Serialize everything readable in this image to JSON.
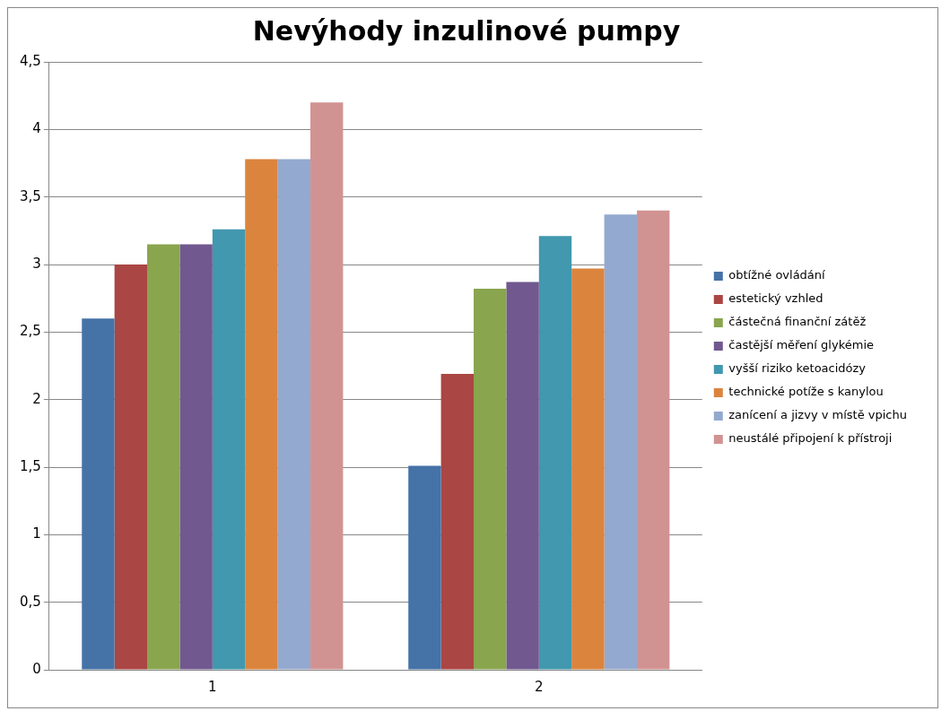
{
  "chart_data": {
    "type": "bar",
    "title": "Nevýhody inzulinové pumpy",
    "categories": [
      "1",
      "2"
    ],
    "series": [
      {
        "name": "obtížné ovládání",
        "color": "#4572a7",
        "values": [
          2.6,
          1.51
        ]
      },
      {
        "name": "estetický vzhled",
        "color": "#aa4643",
        "values": [
          3.0,
          2.19
        ]
      },
      {
        "name": "částečná finanční zátěž",
        "color": "#89a54e",
        "values": [
          3.15,
          2.82
        ]
      },
      {
        "name": "častější měření glykémie",
        "color": "#71588f",
        "values": [
          3.15,
          2.87
        ]
      },
      {
        "name": "vyšší riziko ketoacidózy",
        "color": "#4198af",
        "values": [
          3.26,
          3.21
        ]
      },
      {
        "name": "technické potíže s kanylou",
        "color": "#db843d",
        "values": [
          3.78,
          2.97
        ]
      },
      {
        "name": "zanícení a jizvy v místě vpichu",
        "color": "#93a9cf",
        "values": [
          3.78,
          3.37
        ]
      },
      {
        "name": "neustálé připojení k přístroji",
        "color": "#d19392",
        "values": [
          4.2,
          3.4
        ]
      }
    ],
    "ylim": [
      0,
      4.5
    ],
    "yticks": [
      {
        "value": 0,
        "label": "0"
      },
      {
        "value": 0.5,
        "label": "0,5"
      },
      {
        "value": 1,
        "label": "1"
      },
      {
        "value": 1.5,
        "label": "1,5"
      },
      {
        "value": 2,
        "label": "2"
      },
      {
        "value": 2.5,
        "label": "2,5"
      },
      {
        "value": 3,
        "label": "3"
      },
      {
        "value": 3.5,
        "label": "3,5"
      },
      {
        "value": 4,
        "label": "4"
      },
      {
        "value": 4.5,
        "label": "4,5"
      }
    ],
    "grid": "y",
    "legend": "right"
  }
}
